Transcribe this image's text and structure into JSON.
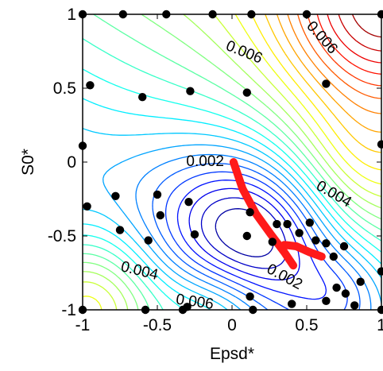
{
  "chart_data": {
    "type": "contour",
    "xlabel": "Epsd*",
    "ylabel": "S0*",
    "xlim": [
      -1,
      1
    ],
    "ylim": [
      -1,
      1
    ],
    "x_ticks": [
      "-1",
      "-0.5",
      "0",
      "0.5",
      "1"
    ],
    "y_ticks": [
      "-1",
      "-0.5",
      "0",
      "0.5",
      "1"
    ],
    "grid": false,
    "contour_labels": [
      {
        "text": "0.006",
        "x": 0.08,
        "y": 0.74,
        "angle": 22
      },
      {
        "text": "0.006",
        "x": 0.6,
        "y": 0.84,
        "angle": 48
      },
      {
        "text": "0.002",
        "x": -0.18,
        "y": 0.0,
        "angle": 0
      },
      {
        "text": "0.004",
        "x": 0.68,
        "y": -0.22,
        "angle": 30
      },
      {
        "text": "0.004",
        "x": -0.62,
        "y": -0.74,
        "angle": 14
      },
      {
        "text": "0.002",
        "x": 0.35,
        "y": -0.78,
        "angle": 28
      },
      {
        "text": "0.006",
        "x": -0.25,
        "y": -0.95,
        "angle": 8
      }
    ],
    "sample_points": [
      [
        -1,
        1
      ],
      [
        -0.73,
        1
      ],
      [
        -0.44,
        1
      ],
      [
        -0.13,
        1
      ],
      [
        0.13,
        1
      ],
      [
        0.5,
        1
      ],
      [
        1,
        1
      ],
      [
        -0.95,
        0.52
      ],
      [
        -0.6,
        0.44
      ],
      [
        -0.28,
        0.48
      ],
      [
        0.1,
        0.47
      ],
      [
        0.63,
        0.53
      ],
      [
        1,
        0.12
      ],
      [
        -1,
        0.11
      ],
      [
        -0.97,
        -0.3
      ],
      [
        -0.78,
        -0.23
      ],
      [
        -0.5,
        -0.22
      ],
      [
        -0.29,
        -0.27
      ],
      [
        -0.48,
        -0.36
      ],
      [
        -0.25,
        -0.49
      ],
      [
        -0.75,
        -0.46
      ],
      [
        -0.56,
        -0.53
      ],
      [
        0.12,
        -0.34
      ],
      [
        0.3,
        -0.42
      ],
      [
        0.1,
        -0.5
      ],
      [
        0.27,
        -0.54
      ],
      [
        0.37,
        -0.42
      ],
      [
        0.45,
        -0.48
      ],
      [
        0.52,
        -0.41
      ],
      [
        0.56,
        -0.53
      ],
      [
        0.63,
        -0.55
      ],
      [
        0.68,
        -0.64
      ],
      [
        0.75,
        -0.57
      ],
      [
        0.12,
        -0.91
      ],
      [
        0.4,
        -0.96
      ],
      [
        0.63,
        -0.94
      ],
      [
        0.7,
        -0.85
      ],
      [
        0.76,
        -0.89
      ],
      [
        0.86,
        -0.81
      ],
      [
        0.82,
        -0.97
      ],
      [
        1,
        -0.74
      ],
      [
        1,
        -1
      ],
      [
        -1,
        -1
      ],
      [
        -0.58,
        -1
      ],
      [
        -0.33,
        -1
      ],
      [
        -0.3,
        -0.98
      ],
      [
        0.14,
        -1
      ]
    ],
    "highlight_path": [
      [
        0.01,
        0.0
      ],
      [
        0.07,
        -0.18
      ],
      [
        0.16,
        -0.35
      ],
      [
        0.26,
        -0.49
      ],
      [
        0.35,
        -0.61
      ],
      [
        0.41,
        -0.7
      ]
    ],
    "highlight_branch": [
      [
        0.35,
        -0.56
      ],
      [
        0.43,
        -0.57
      ],
      [
        0.52,
        -0.61
      ],
      [
        0.6,
        -0.64
      ]
    ],
    "colors": {
      "highlight": "#ff1a1a",
      "points": "#000000",
      "frame": "#000000"
    },
    "colormap": "jet"
  }
}
